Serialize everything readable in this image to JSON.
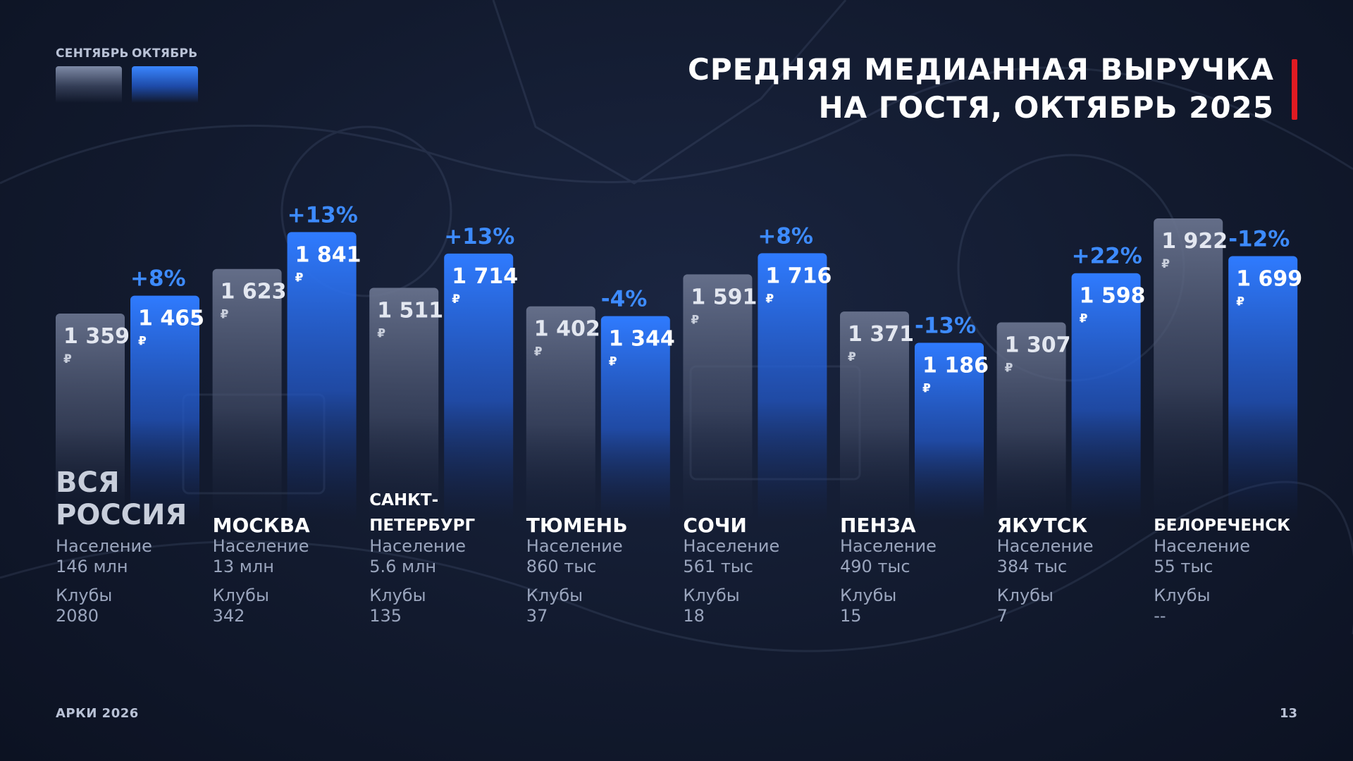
{
  "title": {
    "line1": "СРЕДНЯЯ МЕДИАННАЯ ВЫРУЧКА",
    "line2": "НА ГОСТЯ, ОКТЯБРЬ 2025"
  },
  "legend": {
    "september": "СЕНТЯБРЬ",
    "october": "ОКТЯБРЬ"
  },
  "colors": {
    "accent_red": "#e01b22",
    "october_bar": "#2f7bff",
    "september_bar": "#66708a",
    "change_text": "#3d8bff"
  },
  "currency": "₽",
  "meta_labels": {
    "population": "Население",
    "clubs": "Клубы"
  },
  "chart_data": {
    "type": "bar",
    "categories": [
      "ВСЯ РОССИЯ",
      "МОСКВА",
      "САНКТ-ПЕТЕРБУРГ",
      "ТЮМЕНЬ",
      "СОЧИ",
      "ПЕНЗА",
      "ЯКУТСК",
      "БЕЛОРЕЧЕНСК"
    ],
    "category_lines": [
      [
        "ВСЯ",
        "РОССИЯ"
      ],
      [
        "МОСКВА"
      ],
      [
        "САНКТ-",
        "ПЕТЕРБУРГ"
      ],
      [
        "ТЮМЕНЬ"
      ],
      [
        "СОЧИ"
      ],
      [
        "ПЕНЗА"
      ],
      [
        "ЯКУТСК"
      ],
      [
        "БЕЛОРЕЧЕНСК"
      ]
    ],
    "series": [
      {
        "name": "СЕНТЯБРЬ",
        "values": [
          1359,
          1623,
          1511,
          1402,
          1591,
          1371,
          1307,
          1922
        ],
        "labels": [
          "1 359",
          "1 623",
          "1 511",
          "1 402",
          "1 591",
          "1 371",
          "1 307",
          "1 922"
        ]
      },
      {
        "name": "ОКТЯБРЬ",
        "values": [
          1465,
          1841,
          1714,
          1344,
          1716,
          1186,
          1598,
          1699
        ],
        "labels": [
          "1 465",
          "1 841",
          "1 714",
          "1 344",
          "1 716",
          "1 186",
          "1 598",
          "1 699"
        ]
      }
    ],
    "changes": [
      "+8%",
      "+13%",
      "+13%",
      "-4%",
      "+8%",
      "-13%",
      "+22%",
      "-12%"
    ],
    "population": [
      "146 млн",
      "13 млн",
      "5.6 млн",
      "860 тыс",
      "561 тыс",
      "490 тыс",
      "384 тыс",
      "55 тыс"
    ],
    "clubs": [
      "2080",
      "342",
      "135",
      "37",
      "18",
      "15",
      "7",
      "--"
    ]
  },
  "footer": {
    "left": "АРКИ 2026",
    "page": "13"
  }
}
